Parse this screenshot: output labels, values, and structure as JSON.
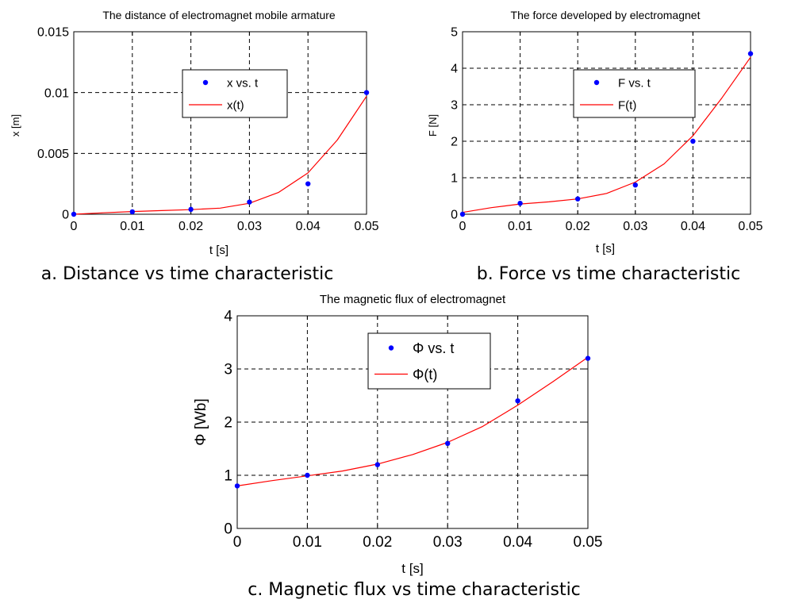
{
  "chart_data": [
    {
      "type": "scatter",
      "title": "The distance of electromagnet mobile armature",
      "xlabel": "t [s]",
      "ylabel": "x [m]",
      "xlim": [
        0,
        0.05
      ],
      "ylim": [
        0,
        0.015
      ],
      "xticks": [
        "0",
        "0.01",
        "0.02",
        "0.03",
        "0.04",
        "0.05"
      ],
      "yticks": [
        "0",
        "0.005",
        "0.01",
        "0.015"
      ],
      "grid": true,
      "legend_position": "top-right",
      "caption": "a. Distance vs time characteristic",
      "series": [
        {
          "name": "x vs. t",
          "kind": "points",
          "color": "#0000ff",
          "x": [
            0,
            0.01,
            0.02,
            0.03,
            0.04,
            0.05
          ],
          "y": [
            0,
            0.0002,
            0.0004,
            0.001,
            0.0025,
            0.01
          ]
        },
        {
          "name": "x(t)",
          "kind": "line",
          "color": "#ff0000",
          "x": [
            0,
            0.005,
            0.01,
            0.015,
            0.02,
            0.025,
            0.03,
            0.035,
            0.04,
            0.045,
            0.05
          ],
          "y": [
            0,
            0.00012,
            0.00022,
            0.0003,
            0.00038,
            0.0005,
            0.0009,
            0.0018,
            0.0034,
            0.0061,
            0.0097
          ]
        }
      ]
    },
    {
      "type": "scatter",
      "title": "The force developed by electromagnet",
      "xlabel": "t [s]",
      "ylabel": "F [N]",
      "xlim": [
        0,
        0.05
      ],
      "ylim": [
        0,
        5
      ],
      "xticks": [
        "0",
        "0.01",
        "0.02",
        "0.03",
        "0.04",
        "0.05"
      ],
      "yticks": [
        "0",
        "1",
        "2",
        "3",
        "4",
        "5"
      ],
      "grid": true,
      "legend_position": "top-right",
      "caption": "b. Force vs time characteristic",
      "series": [
        {
          "name": "F vs. t",
          "kind": "points",
          "color": "#0000ff",
          "x": [
            0,
            0.01,
            0.02,
            0.03,
            0.04,
            0.05
          ],
          "y": [
            0,
            0.3,
            0.42,
            0.8,
            2.0,
            4.4
          ]
        },
        {
          "name": "F(t)",
          "kind": "line",
          "color": "#ff0000",
          "x": [
            0,
            0.005,
            0.01,
            0.015,
            0.02,
            0.025,
            0.03,
            0.035,
            0.04,
            0.045,
            0.05
          ],
          "y": [
            0.05,
            0.18,
            0.28,
            0.34,
            0.42,
            0.57,
            0.88,
            1.38,
            2.15,
            3.18,
            4.3
          ]
        }
      ]
    },
    {
      "type": "scatter",
      "title": "The magnetic flux of electromagnet",
      "xlabel": "t [s]",
      "ylabel": "Φ [Wb]",
      "xlim": [
        0,
        0.05
      ],
      "ylim": [
        0,
        4
      ],
      "xticks": [
        "0",
        "0.01",
        "0.02",
        "0.03",
        "0.04",
        "0.05"
      ],
      "yticks": [
        "0",
        "1",
        "2",
        "3",
        "4"
      ],
      "grid": true,
      "legend_position": "top-right",
      "caption": "c. Magnetic flux vs time characteristic",
      "series": [
        {
          "name": "Φ vs. t",
          "kind": "points",
          "color": "#0000ff",
          "x": [
            0,
            0.01,
            0.02,
            0.03,
            0.04,
            0.05
          ],
          "y": [
            0.8,
            1.0,
            1.2,
            1.6,
            2.4,
            3.2
          ]
        },
        {
          "name": "Φ(t)",
          "kind": "line",
          "color": "#ff0000",
          "x": [
            0,
            0.005,
            0.01,
            0.015,
            0.02,
            0.025,
            0.03,
            0.035,
            0.04,
            0.045,
            0.05
          ],
          "y": [
            0.8,
            0.9,
            0.99,
            1.08,
            1.21,
            1.39,
            1.62,
            1.92,
            2.32,
            2.76,
            3.22
          ]
        }
      ]
    }
  ]
}
